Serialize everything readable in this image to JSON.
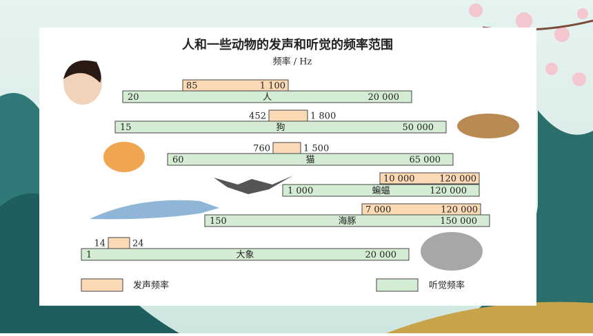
{
  "title": "人和一些动物的发声和听觉的频率范围",
  "subtitle": "频率 / Hz",
  "rows": [
    {
      "name": "人",
      "hearing": [
        "20",
        "20 000"
      ],
      "voice": [
        "85",
        "1 100"
      ]
    },
    {
      "name": "狗",
      "hearing": [
        "15",
        "50 000"
      ],
      "voice": [
        "452",
        "1 800"
      ]
    },
    {
      "name": "猫",
      "hearing": [
        "60",
        "65 000"
      ],
      "voice": [
        "760",
        "1 500"
      ]
    },
    {
      "name": "蝙蝠",
      "hearing": [
        "1 000",
        "120 000"
      ],
      "voice": [
        "10 000",
        "120 000"
      ]
    },
    {
      "name": "海豚",
      "hearing": [
        "150",
        "150 000"
      ],
      "voice": [
        "7 000",
        "120 000"
      ]
    },
    {
      "name": "大象",
      "hearing": [
        "1",
        "20 000"
      ],
      "voice": [
        "14",
        "24"
      ]
    }
  ],
  "legend": {
    "voice": "发声频率",
    "hearing": "听觉频率"
  }
}
